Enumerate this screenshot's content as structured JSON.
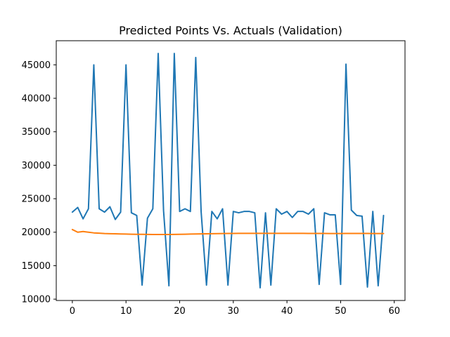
{
  "chart_data": {
    "type": "line",
    "title": "Predicted Points Vs. Actuals (Validation)",
    "xlabel": "",
    "ylabel": "",
    "xlim": [
      -3,
      62
    ],
    "ylim": [
      9800,
      48600
    ],
    "xticks": [
      0,
      10,
      20,
      30,
      40,
      50,
      60
    ],
    "yticks": [
      10000,
      15000,
      20000,
      25000,
      30000,
      35000,
      40000,
      45000
    ],
    "grid": false,
    "legend": "none",
    "x": [
      0,
      1,
      2,
      3,
      4,
      5,
      6,
      7,
      8,
      9,
      10,
      11,
      12,
      13,
      14,
      15,
      16,
      17,
      18,
      19,
      20,
      21,
      22,
      23,
      24,
      25,
      26,
      27,
      28,
      29,
      30,
      31,
      32,
      33,
      34,
      35,
      36,
      37,
      38,
      39,
      40,
      41,
      42,
      43,
      44,
      45,
      46,
      47,
      48,
      49,
      50,
      51,
      52,
      53,
      54,
      55,
      56,
      57,
      58
    ],
    "series": [
      {
        "color": "#1f77b4",
        "values": [
          23000,
          23700,
          22000,
          23500,
          45000,
          23500,
          23000,
          23800,
          21900,
          23000,
          45000,
          22900,
          22500,
          12100,
          22100,
          23500,
          46700,
          23200,
          12000,
          46700,
          23100,
          23500,
          23100,
          46100,
          23100,
          12100,
          23100,
          22000,
          23500,
          12100,
          23100,
          22900,
          23100,
          23100,
          22900,
          11700,
          22900,
          12100,
          23500,
          22700,
          23100,
          22200,
          23100,
          23100,
          22700,
          23500,
          12200,
          22900,
          22600,
          22600,
          12200,
          45100,
          23300,
          22500,
          22400,
          11800,
          23100,
          12000,
          22500
        ]
      },
      {
        "color": "#ff7f0e",
        "values": [
          20400,
          20000,
          20100,
          20000,
          19900,
          19850,
          19800,
          19780,
          19760,
          19740,
          19720,
          19700,
          19690,
          19680,
          19670,
          19660,
          19660,
          19660,
          19660,
          19670,
          19690,
          19700,
          19720,
          19730,
          19750,
          19760,
          19780,
          19790,
          19800,
          19810,
          19820,
          19830,
          19830,
          19830,
          19830,
          19830,
          19830,
          19830,
          19830,
          19830,
          19830,
          19830,
          19830,
          19830,
          19820,
          19820,
          19810,
          19810,
          19800,
          19800,
          19800,
          19810,
          19810,
          19810,
          19810,
          19810,
          19800,
          19800,
          19800
        ]
      }
    ]
  }
}
